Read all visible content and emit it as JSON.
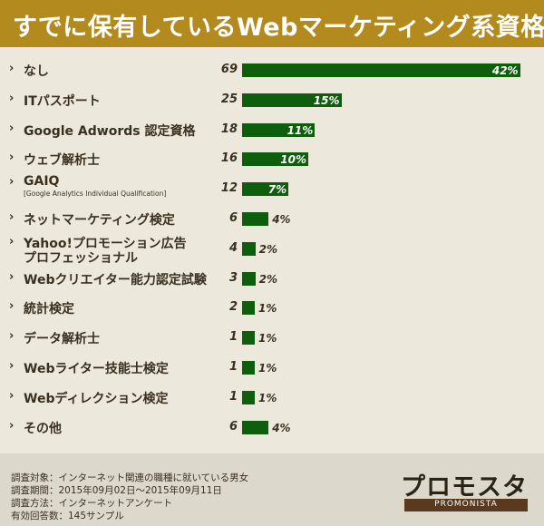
{
  "title": "すでに保有しているWebマーケティング系資格",
  "chart_data": {
    "type": "bar",
    "orientation": "horizontal",
    "title": "すでに保有しているWebマーケティング系資格",
    "xlabel": "",
    "ylabel": "",
    "categories": [
      {
        "label": "なし",
        "count": 69,
        "percent": 42
      },
      {
        "label": "ITパスポート",
        "count": 25,
        "percent": 15
      },
      {
        "label": "Google Adwords 認定資格",
        "count": 18,
        "percent": 11
      },
      {
        "label": "ウェブ解析士",
        "count": 16,
        "percent": 10
      },
      {
        "label": "GAIQ",
        "sublabel": "[Google Analytics Individual Qualification]",
        "count": 12,
        "percent": 7
      },
      {
        "label": "ネットマーケティング検定",
        "count": 6,
        "percent": 4
      },
      {
        "label": "Yahoo!プロモーション広告",
        "label2": "プロフェッショナル",
        "count": 4,
        "percent": 2
      },
      {
        "label": "Webクリエイター能力認定試験",
        "count": 3,
        "percent": 2
      },
      {
        "label": "統計検定",
        "count": 2,
        "percent": 1
      },
      {
        "label": "データ解析士",
        "count": 1,
        "percent": 1
      },
      {
        "label": "Webライター技能士検定",
        "count": 1,
        "percent": 1
      },
      {
        "label": "Webディレクション検定",
        "count": 1,
        "percent": 1
      },
      {
        "label": "その他",
        "count": 6,
        "percent": 4
      }
    ],
    "value_suffix": "%",
    "bar_color": "#0e5e0e",
    "grid": false
  },
  "footer": {
    "notes": [
      "調査対象：インターネット関連の職種に就いている男女",
      "調査期間：2015年09月02日〜2015年09月11日",
      "調査方法：インターネットアンケート",
      "有効回答数：145サンプル"
    ]
  },
  "logo": {
    "main": "プロモスタ",
    "sub": "PROMONISTA"
  },
  "colors": {
    "header": "#b38a1e",
    "bar": "#0e5e0e",
    "background": "#ece8dc"
  }
}
